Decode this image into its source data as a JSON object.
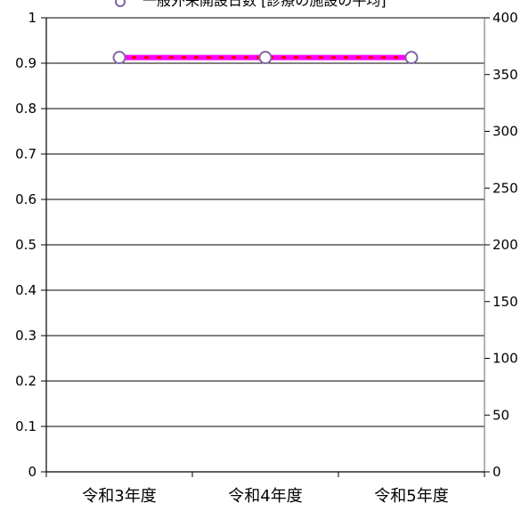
{
  "chart_data": {
    "type": "line",
    "categories": [
      "令和3年度",
      "令和4年度",
      "令和5年度"
    ],
    "series": [
      {
        "name": "一般外来開設日数 [診療の施設の平均]",
        "axis": "right",
        "values": [
          365,
          365,
          365
        ],
        "line_color": "#ff00ff",
        "dash_color": "#ff0000",
        "marker": "circle",
        "marker_fill": "#ffffff",
        "marker_stroke": "#8064a2"
      }
    ],
    "y_left": {
      "ylim": [
        0,
        1
      ],
      "ticks": [
        "0",
        "0.1",
        "0.2",
        "0.3",
        "0.4",
        "0.5",
        "0.6",
        "0.7",
        "0.8",
        "0.9",
        "1"
      ]
    },
    "y_right": {
      "ylim": [
        0,
        400
      ],
      "ticks": [
        "0",
        "50",
        "100",
        "150",
        "200",
        "250",
        "300",
        "350",
        "400"
      ]
    },
    "grid": true,
    "legend_position": "top"
  }
}
